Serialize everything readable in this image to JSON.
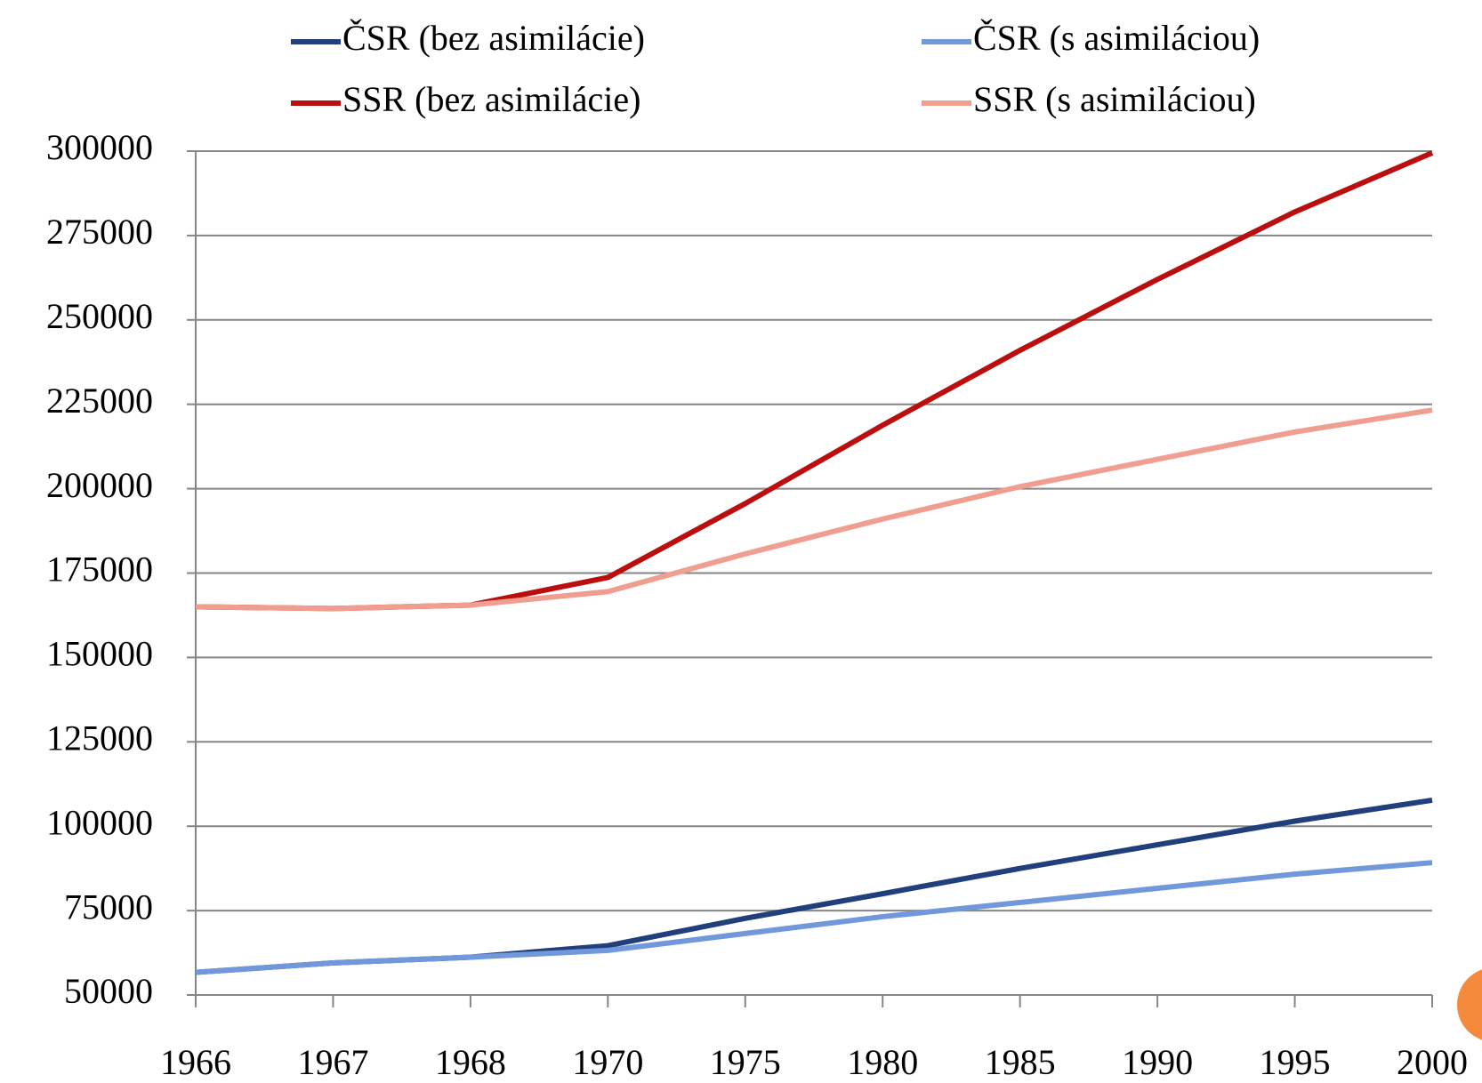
{
  "chart_data": {
    "type": "line",
    "categories": [
      "1966",
      "1967",
      "1968",
      "1970",
      "1975",
      "1980",
      "1985",
      "1990",
      "1995",
      "2000"
    ],
    "series": [
      {
        "name": "ČSR (bez asimilácie)",
        "color": "#203f7c",
        "values": [
          56700,
          59500,
          61200,
          64600,
          72700,
          80000,
          87500,
          94500,
          101500,
          107700
        ]
      },
      {
        "name": "ČSR (s asimiláciou)",
        "color": "#7098da",
        "values": [
          56700,
          59500,
          61200,
          63200,
          68200,
          73200,
          77400,
          81600,
          85800,
          89200
        ]
      },
      {
        "name": "SSR (bez asimilácie)",
        "color": "#bb0e0e",
        "values": [
          165000,
          164500,
          165500,
          173700,
          195600,
          218800,
          241000,
          262000,
          282000,
          299500
        ]
      },
      {
        "name": "SSR (s asimiláciou)",
        "color": "#f09e90",
        "values": [
          165000,
          164500,
          165500,
          169500,
          180700,
          191000,
          200600,
          208700,
          216800,
          223300
        ]
      }
    ],
    "ylim": [
      50000,
      300000
    ],
    "yticks": [
      50000,
      75000,
      100000,
      125000,
      150000,
      175000,
      200000,
      225000,
      250000,
      275000,
      300000
    ],
    "grid": true
  }
}
